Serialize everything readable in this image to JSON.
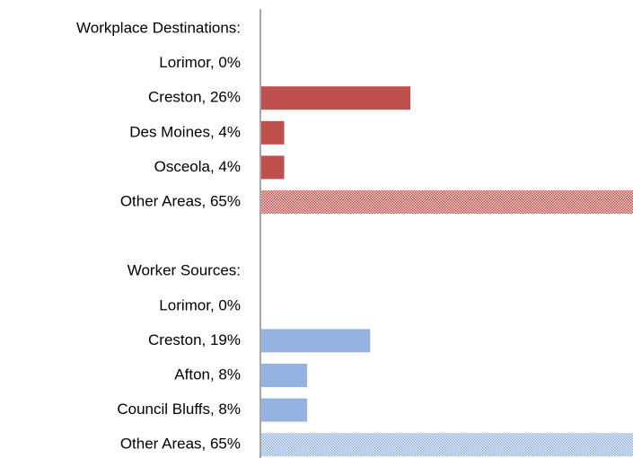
{
  "chart_data": {
    "type": "bar",
    "orientation": "horizontal",
    "series": [
      {
        "name": "Workplace Destinations:",
        "color": "#c0504d",
        "categories": [
          "Lorimor, 0%",
          "Creston, 26%",
          "Des Moines, 4%",
          "Osceola, 4%",
          "Other Areas, 65%"
        ],
        "values": [
          0,
          26,
          4,
          4,
          65
        ],
        "hatched": [
          false,
          false,
          false,
          false,
          true
        ]
      },
      {
        "name": "Worker Sources:",
        "color": "#95b3e0",
        "categories": [
          "Lorimor, 0%",
          "Creston, 19%",
          "Afton, 8%",
          "Council Bluffs, 8%",
          "Other Areas, 65%"
        ],
        "values": [
          0,
          19,
          8,
          8,
          65
        ],
        "hatched": [
          false,
          false,
          false,
          false,
          true
        ]
      }
    ],
    "xlim": [
      0,
      65
    ]
  }
}
